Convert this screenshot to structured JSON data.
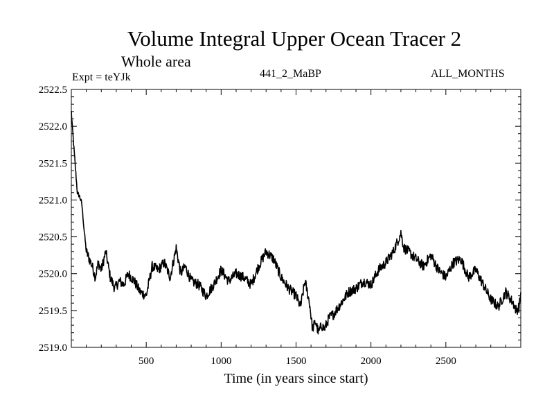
{
  "chart_data": {
    "type": "line",
    "title": "Volume Integral Upper Ocean Tracer 2",
    "subtitle": "Whole area",
    "annotations": {
      "experiment": "Expt = teYJk",
      "code": "441_2_MaBP",
      "months": "ALL_MONTHS"
    },
    "xlabel": "Time (in years since start)",
    "ylabel": "",
    "xlim": [
      0,
      3000
    ],
    "ylim": [
      2519.0,
      2522.5
    ],
    "xticks": [
      500,
      1000,
      1500,
      2000,
      2500
    ],
    "yticks": [
      "2519.0",
      "2519.5",
      "2520.0",
      "2520.5",
      "2521.0",
      "2521.5",
      "2522.0",
      "2522.5"
    ],
    "series": [
      {
        "name": "Tracer 2",
        "x": [
          0,
          10,
          25,
          40,
          55,
          70,
          85,
          100,
          120,
          140,
          160,
          180,
          200,
          230,
          260,
          290,
          320,
          350,
          380,
          420,
          460,
          500,
          540,
          580,
          620,
          660,
          700,
          730,
          760,
          800,
          850,
          900,
          950,
          1000,
          1050,
          1100,
          1150,
          1200,
          1250,
          1300,
          1350,
          1400,
          1450,
          1500,
          1530,
          1560,
          1590,
          1610,
          1630,
          1650,
          1670,
          1690,
          1720,
          1750,
          1800,
          1850,
          1900,
          1950,
          2000,
          2050,
          2100,
          2150,
          2180,
          2200,
          2220,
          2250,
          2300,
          2350,
          2400,
          2450,
          2500,
          2550,
          2600,
          2650,
          2700,
          2750,
          2800,
          2850,
          2900,
          2950,
          2970,
          2990,
          3000
        ],
        "values": [
          2522.2,
          2521.9,
          2521.5,
          2521.1,
          2521.05,
          2520.95,
          2520.6,
          2520.3,
          2520.2,
          2520.1,
          2519.95,
          2520.15,
          2520.05,
          2520.3,
          2519.95,
          2519.8,
          2519.9,
          2519.85,
          2520.0,
          2519.9,
          2519.75,
          2519.7,
          2520.1,
          2520.05,
          2520.15,
          2519.95,
          2520.35,
          2520.0,
          2520.1,
          2519.9,
          2519.85,
          2519.7,
          2519.85,
          2520.05,
          2519.9,
          2520.0,
          2519.95,
          2519.85,
          2520.1,
          2520.3,
          2520.2,
          2519.95,
          2519.8,
          2519.7,
          2519.55,
          2519.9,
          2519.6,
          2519.25,
          2519.35,
          2519.2,
          2519.3,
          2519.25,
          2519.4,
          2519.45,
          2519.6,
          2519.75,
          2519.8,
          2519.9,
          2519.85,
          2520.05,
          2520.15,
          2520.3,
          2520.45,
          2520.55,
          2520.35,
          2520.3,
          2520.2,
          2520.1,
          2520.25,
          2520.05,
          2519.95,
          2520.15,
          2520.2,
          2519.95,
          2520.05,
          2519.85,
          2519.65,
          2519.55,
          2519.75,
          2519.6,
          2519.5,
          2519.55,
          2519.75
        ]
      }
    ]
  }
}
